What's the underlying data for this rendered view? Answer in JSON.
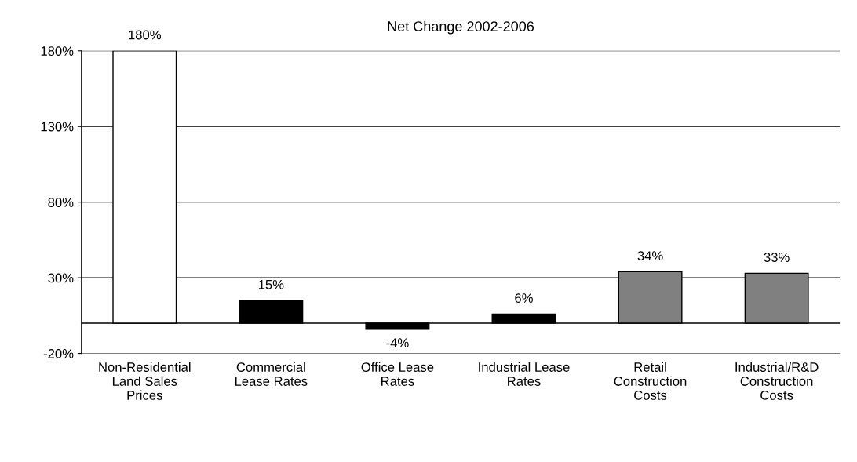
{
  "chart_data": {
    "type": "bar",
    "title": "Net Change 2002-2006",
    "categories": [
      "Non-Residential\nLand Sales\nPrices",
      "Commercial\nLease Rates",
      "Office Lease\nRates",
      "Industrial Lease\nRates",
      "Retail\nConstruction\nCosts",
      "Industrial/R&D\nConstruction\nCosts"
    ],
    "values": [
      180,
      15,
      -4,
      6,
      34,
      33
    ],
    "colors": [
      "#ffffff",
      "#000000",
      "#000000",
      "#000000",
      "#808080",
      "#808080"
    ],
    "value_labels": [
      "180%",
      "15%",
      "-4%",
      "6%",
      "34%",
      "33%"
    ],
    "ylim": [
      -20,
      180
    ],
    "yticks": [
      {
        "value": -20,
        "label": "-20%"
      },
      {
        "value": 30,
        "label": "30%"
      },
      {
        "value": 80,
        "label": "80%"
      },
      {
        "value": 130,
        "label": "130%"
      },
      {
        "value": 180,
        "label": "180%"
      }
    ],
    "ref_lines": [
      {
        "axis": "y",
        "value": 0,
        "color": "#000000"
      }
    ],
    "grid": "y"
  }
}
